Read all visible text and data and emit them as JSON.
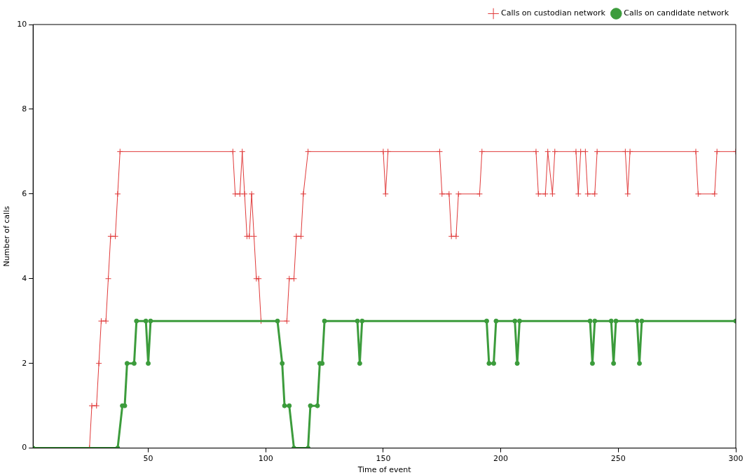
{
  "chart_data": {
    "type": "line",
    "xlabel": "Time of event",
    "ylabel": "Number of calls",
    "xlim": [
      1,
      300
    ],
    "xticks": [
      50,
      100,
      150,
      200,
      250,
      300
    ],
    "ylim": [
      0,
      10
    ],
    "yticks": [
      0,
      2,
      4,
      6,
      8,
      10
    ],
    "grid": false,
    "legend": "top right",
    "line_style": "solid",
    "series": [
      {
        "name": "Calls on custodian network",
        "color": "#e03a3a",
        "marker": "cross",
        "x": [
          1,
          25,
          26,
          28,
          29,
          30,
          32,
          33,
          34,
          36,
          37,
          38,
          86,
          87,
          89,
          90,
          91,
          92,
          93,
          94,
          95,
          96,
          97,
          98,
          109,
          110,
          112,
          113,
          115,
          116,
          118,
          150,
          151,
          152,
          174,
          175,
          178,
          179,
          181,
          182,
          191,
          192,
          215,
          216,
          219,
          220,
          222,
          223,
          232,
          233,
          234,
          236,
          237,
          240,
          241,
          253,
          254,
          255,
          283,
          284,
          291,
          292,
          300
        ],
        "values": [
          0,
          0,
          1,
          1,
          2,
          3,
          3,
          4,
          5,
          5,
          6,
          7,
          7,
          6,
          6,
          7,
          6,
          5,
          5,
          6,
          5,
          4,
          4,
          3,
          3,
          4,
          4,
          5,
          5,
          6,
          7,
          7,
          6,
          7,
          7,
          6,
          6,
          5,
          5,
          6,
          6,
          7,
          7,
          6,
          6,
          7,
          6,
          7,
          7,
          6,
          7,
          7,
          6,
          6,
          7,
          7,
          6,
          7,
          7,
          6,
          6,
          7,
          7
        ]
      },
      {
        "name": "Calls on candidate network",
        "color": "#3c9c3c",
        "marker": "circle",
        "x": [
          1,
          37,
          39,
          40,
          41,
          44,
          45,
          49,
          50,
          51,
          105,
          107,
          108,
          110,
          112,
          118,
          119,
          122,
          123,
          124,
          125,
          139,
          140,
          141,
          194,
          195,
          197,
          198,
          206,
          207,
          208,
          238,
          239,
          240,
          247,
          248,
          249,
          258,
          259,
          260,
          300
        ],
        "values": [
          0,
          0,
          1,
          1,
          2,
          2,
          3,
          3,
          2,
          3,
          3,
          2,
          1,
          1,
          0,
          0,
          1,
          1,
          2,
          2,
          3,
          3,
          2,
          3,
          3,
          2,
          2,
          3,
          3,
          2,
          3,
          3,
          2,
          3,
          3,
          2,
          3,
          3,
          2,
          3,
          3
        ]
      }
    ]
  }
}
